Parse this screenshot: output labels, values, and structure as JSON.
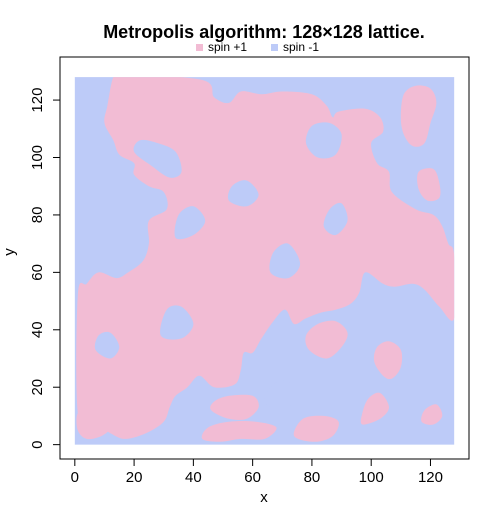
{
  "chart_data": {
    "type": "heatmap",
    "title": "Metropolis algorithm: 128×128 lattice.",
    "xlabel": "x",
    "ylabel": "y",
    "xlim": [
      -5,
      133
    ],
    "ylim": [
      -5,
      135
    ],
    "x_ticks": [
      0,
      20,
      40,
      60,
      80,
      100,
      120
    ],
    "y_ticks": [
      0,
      20,
      40,
      60,
      80,
      100,
      120
    ],
    "grid": false,
    "legend_position": "top",
    "lattice_size": 128,
    "series": [
      {
        "name": "spin +1",
        "value": 1,
        "color": "#f2bcd4"
      },
      {
        "name": "spin -1",
        "value": -1,
        "color": "#bdcbf8"
      }
    ],
    "spin_up_regions": [
      [
        [
          13,
          128
        ],
        [
          16,
          129
        ],
        [
          43,
          127
        ],
        [
          47,
          121
        ],
        [
          52,
          119
        ],
        [
          56,
          123
        ],
        [
          63,
          122
        ],
        [
          70,
          123
        ],
        [
          80,
          122
        ],
        [
          85,
          118
        ],
        [
          87,
          114
        ],
        [
          89,
          116
        ],
        [
          98,
          117
        ],
        [
          103,
          114
        ],
        [
          104,
          109
        ],
        [
          100,
          105
        ],
        [
          102,
          98
        ],
        [
          106,
          95
        ],
        [
          107,
          88
        ],
        [
          115,
          82
        ],
        [
          121,
          80
        ],
        [
          124,
          76
        ],
        [
          126,
          70
        ],
        [
          128,
          66
        ],
        [
          128,
          44
        ],
        [
          123,
          48
        ],
        [
          118,
          54
        ],
        [
          114,
          56
        ],
        [
          108,
          55
        ],
        [
          104,
          56
        ],
        [
          98,
          60
        ],
        [
          96,
          53
        ],
        [
          93,
          49
        ],
        [
          88,
          47
        ],
        [
          83,
          46
        ],
        [
          78,
          44
        ],
        [
          74,
          42
        ],
        [
          71,
          47
        ],
        [
          67,
          43
        ],
        [
          63,
          37
        ],
        [
          60,
          32
        ],
        [
          57,
          32
        ],
        [
          56,
          26
        ],
        [
          54,
          21
        ],
        [
          47,
          20
        ],
        [
          42,
          24
        ],
        [
          38,
          20
        ],
        [
          34,
          17
        ],
        [
          32,
          13
        ],
        [
          30,
          8
        ],
        [
          24,
          4
        ],
        [
          17,
          2
        ],
        [
          12,
          4
        ],
        [
          6,
          8
        ],
        [
          1,
          11
        ],
        [
          1,
          52
        ],
        [
          4,
          56
        ],
        [
          8,
          60
        ],
        [
          14,
          58
        ],
        [
          18,
          60
        ],
        [
          23,
          64
        ],
        [
          25,
          70
        ],
        [
          25,
          78
        ],
        [
          31,
          82
        ],
        [
          30,
          88
        ],
        [
          25,
          90
        ],
        [
          20,
          94
        ],
        [
          20,
          98
        ],
        [
          15,
          101
        ],
        [
          13,
          106
        ],
        [
          10,
          112
        ],
        [
          11,
          118
        ]
      ],
      [
        [
          22,
          15
        ],
        [
          26,
          13
        ],
        [
          31,
          16
        ],
        [
          34,
          21
        ],
        [
          36,
          27
        ],
        [
          34,
          31
        ],
        [
          28,
          30
        ],
        [
          24,
          26
        ],
        [
          20,
          22
        ]
      ],
      [
        [
          1,
          5
        ],
        [
          4,
          2
        ],
        [
          9,
          3
        ],
        [
          12,
          6
        ],
        [
          10,
          10
        ],
        [
          5,
          12
        ],
        [
          1,
          11
        ]
      ],
      [
        [
          46,
          12
        ],
        [
          52,
          9
        ],
        [
          58,
          9
        ],
        [
          62,
          13
        ],
        [
          60,
          17
        ],
        [
          52,
          17
        ],
        [
          47,
          15
        ]
      ],
      [
        [
          79,
          33
        ],
        [
          85,
          30
        ],
        [
          90,
          34
        ],
        [
          92,
          39
        ],
        [
          88,
          43
        ],
        [
          82,
          42
        ],
        [
          78,
          38
        ]
      ],
      [
        [
          101,
          29
        ],
        [
          104,
          24
        ],
        [
          107,
          23
        ],
        [
          110,
          27
        ],
        [
          110,
          33
        ],
        [
          106,
          36
        ],
        [
          102,
          34
        ]
      ],
      [
        [
          43,
          2
        ],
        [
          49,
          1
        ],
        [
          56,
          2
        ],
        [
          64,
          2
        ],
        [
          68,
          6
        ],
        [
          61,
          8
        ],
        [
          52,
          8
        ],
        [
          45,
          6
        ]
      ],
      [
        [
          74,
          3
        ],
        [
          81,
          1
        ],
        [
          87,
          3
        ],
        [
          89,
          8
        ],
        [
          84,
          10
        ],
        [
          77,
          9
        ]
      ],
      [
        [
          97,
          7
        ],
        [
          103,
          9
        ],
        [
          106,
          13
        ],
        [
          103,
          18
        ],
        [
          99,
          16
        ],
        [
          97,
          11
        ]
      ],
      [
        [
          111,
          122
        ],
        [
          115,
          125
        ],
        [
          120,
          124
        ],
        [
          122,
          119
        ],
        [
          120,
          112
        ],
        [
          118,
          105
        ],
        [
          114,
          104
        ],
        [
          111,
          108
        ],
        [
          110,
          114
        ]
      ],
      [
        [
          116,
          95
        ],
        [
          121,
          96
        ],
        [
          123,
          91
        ],
        [
          123,
          86
        ],
        [
          119,
          85
        ],
        [
          116,
          89
        ]
      ],
      [
        [
          108,
          72
        ],
        [
          113,
          71
        ],
        [
          117,
          65
        ],
        [
          113,
          63
        ],
        [
          109,
          67
        ]
      ],
      [
        [
          121,
          58
        ],
        [
          124,
          61
        ],
        [
          127,
          58
        ],
        [
          124,
          54
        ]
      ],
      [
        [
          118,
          12
        ],
        [
          122,
          14
        ],
        [
          124,
          10
        ],
        [
          121,
          7
        ],
        [
          117,
          8
        ]
      ],
      [
        [
          22,
          120
        ],
        [
          27,
          125
        ],
        [
          32,
          122
        ],
        [
          29,
          116
        ],
        [
          24,
          115
        ]
      ]
    ],
    "spin_down_regions": [
      [
        [
          20,
          102
        ],
        [
          26,
          97
        ],
        [
          32,
          93
        ],
        [
          36,
          95
        ],
        [
          34,
          102
        ],
        [
          28,
          105
        ],
        [
          22,
          106
        ]
      ],
      [
        [
          34,
          72
        ],
        [
          40,
          73
        ],
        [
          44,
          78
        ],
        [
          40,
          83
        ],
        [
          35,
          80
        ]
      ],
      [
        [
          66,
          60
        ],
        [
          72,
          58
        ],
        [
          76,
          63
        ],
        [
          72,
          70
        ],
        [
          67,
          67
        ]
      ],
      [
        [
          52,
          85
        ],
        [
          58,
          83
        ],
        [
          62,
          87
        ],
        [
          58,
          92
        ],
        [
          53,
          90
        ]
      ],
      [
        [
          78,
          105
        ],
        [
          82,
          100
        ],
        [
          88,
          101
        ],
        [
          90,
          108
        ],
        [
          86,
          112
        ],
        [
          80,
          111
        ]
      ],
      [
        [
          84,
          76
        ],
        [
          88,
          73
        ],
        [
          92,
          78
        ],
        [
          90,
          84
        ],
        [
          86,
          82
        ]
      ],
      [
        [
          29,
          38
        ],
        [
          36,
          37
        ],
        [
          40,
          42
        ],
        [
          36,
          48
        ],
        [
          31,
          47
        ]
      ],
      [
        [
          64,
          15
        ],
        [
          70,
          12
        ],
        [
          74,
          16
        ],
        [
          72,
          22
        ],
        [
          67,
          21
        ]
      ],
      [
        [
          7,
          33
        ],
        [
          12,
          30
        ],
        [
          15,
          34
        ],
        [
          12,
          39
        ],
        [
          8,
          38
        ]
      ]
    ]
  }
}
